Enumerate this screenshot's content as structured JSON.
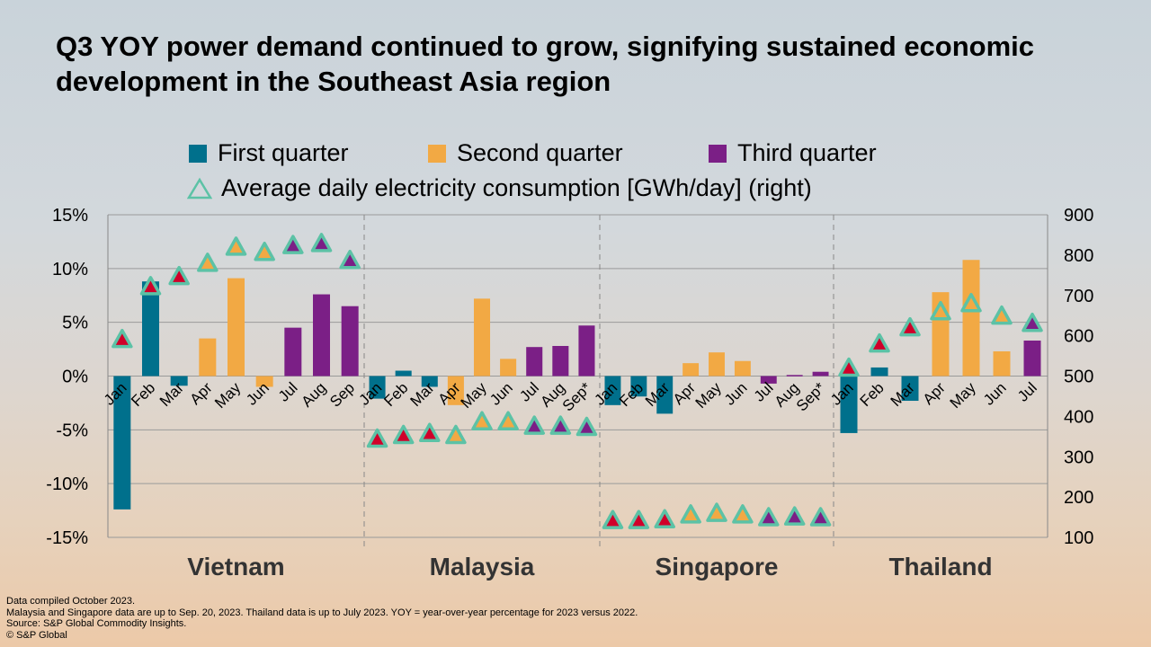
{
  "title": "Q3 YOY power demand continued to grow, signifying sustained economic development in the Southeast Asia region",
  "legend": {
    "q1": "First quarter",
    "q2": "Second quarter",
    "q3": "Third quarter",
    "avg": "Average daily electricity consumption [GWh/day] (right)"
  },
  "colors": {
    "q1": "#00708c",
    "q2": "#f2a944",
    "q3": "#7b1f86",
    "q1_marker": "#d0002a",
    "marker_outline": "#5cc2a6"
  },
  "footnotes": [
    "Data compiled October 2023.",
    "Malaysia and Singapore data are up to Sep. 20, 2023. Thailand data is up to July 2023. YOY  = year-over-year percentage for 2023 versus 2022.",
    "Source: S&P Global Commodity Insights.",
    "© S&P Global"
  ],
  "chart_data": {
    "type": "bar",
    "title": "",
    "y_left": {
      "min": -15,
      "max": 15,
      "ticks": [
        "15%",
        "10%",
        "5%",
        "0%",
        "-5%",
        "-10%",
        "-15%"
      ]
    },
    "y_right": {
      "min": 100,
      "max": 900,
      "ticks": [
        "900",
        "800",
        "700",
        "600",
        "500",
        "400",
        "300",
        "200",
        "100"
      ]
    },
    "grid": true,
    "legend_position": "top",
    "groups": [
      {
        "name": "Vietnam",
        "months": [
          "Jan",
          "Feb",
          "Mar",
          "Apr",
          "May",
          "Jun",
          "Jul",
          "Aug",
          "Sep"
        ],
        "quarter": [
          1,
          1,
          1,
          2,
          2,
          2,
          3,
          3,
          3
        ],
        "yoy": [
          -12.4,
          8.8,
          -0.9,
          3.5,
          9.1,
          -1.0,
          4.5,
          7.6,
          6.5
        ],
        "avg_gwh": [
          591,
          722,
          747,
          780,
          820,
          807,
          824,
          829,
          787
        ]
      },
      {
        "name": "Malaysia",
        "months": [
          "Jan",
          "Feb",
          "Mar",
          "Apr",
          "May",
          "Jun",
          "Jul",
          "Aug",
          "Sep*"
        ],
        "quarter": [
          1,
          1,
          1,
          2,
          2,
          2,
          3,
          3,
          3
        ],
        "yoy": [
          -2.1,
          0.5,
          -1.0,
          -2.7,
          7.2,
          1.6,
          2.7,
          2.8,
          4.7
        ],
        "avg_gwh": [
          344,
          353,
          358,
          353,
          387,
          387,
          376,
          376,
          373
        ]
      },
      {
        "name": "Singapore",
        "months": [
          "Jan",
          "Feb",
          "Mar",
          "Apr",
          "May",
          "Jun",
          "Jul",
          "Aug",
          "Sep*"
        ],
        "quarter": [
          1,
          1,
          1,
          2,
          2,
          2,
          3,
          3,
          3
        ],
        "yoy": [
          -2.7,
          -1.9,
          -3.5,
          1.2,
          2.2,
          1.4,
          -0.7,
          0.1,
          0.4
        ],
        "avg_gwh": [
          142,
          142,
          144,
          156,
          160,
          156,
          149,
          151,
          149
        ]
      },
      {
        "name": "Thailand",
        "months": [
          "Jan",
          "Feb",
          "Mar",
          "Apr",
          "May",
          "Jun",
          "Jul"
        ],
        "quarter": [
          1,
          1,
          1,
          2,
          2,
          2,
          3
        ],
        "yoy": [
          -5.3,
          0.8,
          -2.3,
          7.8,
          10.8,
          2.3,
          3.3
        ],
        "avg_gwh": [
          520,
          580,
          620,
          660,
          680,
          649,
          631
        ]
      }
    ]
  }
}
